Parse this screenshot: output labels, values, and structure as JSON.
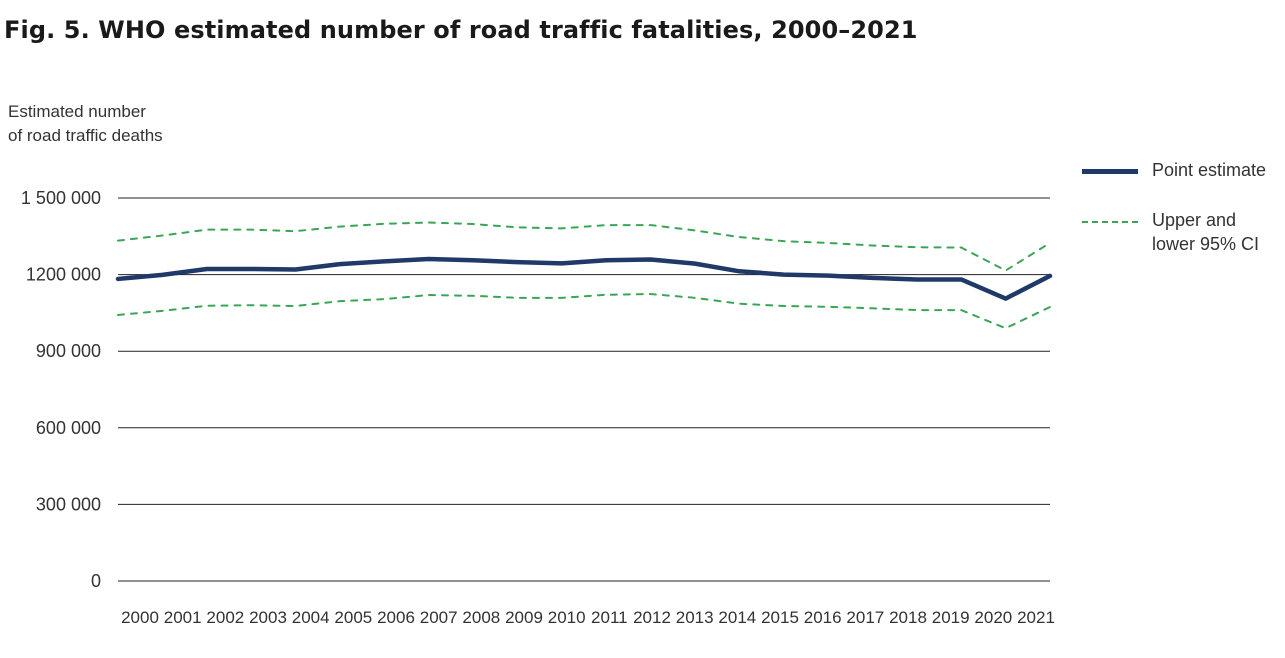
{
  "chart_data": {
    "type": "line",
    "title": "Fig. 5. WHO estimated number of road traffic fatalities, 2000–2021",
    "ylabel_line1": "Estimated number",
    "ylabel_line2": "of road traffic deaths",
    "xlabel": "",
    "ylim": [
      0,
      1500000
    ],
    "yticks": [
      0,
      300000,
      600000,
      900000,
      1200000,
      1500000
    ],
    "ytick_labels": [
      "0",
      "300 000",
      "600 000",
      "900 000",
      "1200 000",
      "1 500 000"
    ],
    "grid": true,
    "legend_position": "right",
    "categories": [
      "2000",
      "2001",
      "2002",
      "2003",
      "2004",
      "2005",
      "2006",
      "2007",
      "2008",
      "2009",
      "2010",
      "2011",
      "2012",
      "2013",
      "2014",
      "2015",
      "2016",
      "2017",
      "2018",
      "2019",
      "2020",
      "2021"
    ],
    "series": [
      {
        "name": "Point estimate",
        "style": "solid",
        "color": "#1f3a68",
        "values": [
          1183000,
          1199000,
          1222000,
          1222000,
          1220000,
          1241000,
          1252000,
          1261000,
          1256000,
          1249000,
          1244000,
          1256000,
          1259000,
          1243000,
          1213000,
          1200000,
          1196000,
          1187000,
          1181000,
          1181000,
          1106000,
          1195000
        ]
      },
      {
        "name": "Upper 95% CI",
        "style": "dashed",
        "color": "#3aa655",
        "values": [
          1333000,
          1353000,
          1376000,
          1376000,
          1370000,
          1388000,
          1399000,
          1404000,
          1398000,
          1385000,
          1381000,
          1394000,
          1394000,
          1373000,
          1347000,
          1331000,
          1324000,
          1314000,
          1307000,
          1306000,
          1216000,
          1324000
        ]
      },
      {
        "name": "Lower 95% CI",
        "style": "dashed",
        "color": "#3aa655",
        "values": [
          1042000,
          1058000,
          1078000,
          1080000,
          1077000,
          1096000,
          1104000,
          1120000,
          1117000,
          1109000,
          1109000,
          1121000,
          1124000,
          1109000,
          1086000,
          1077000,
          1074000,
          1068000,
          1061000,
          1061000,
          990000,
          1073000
        ]
      }
    ],
    "legend": [
      {
        "label_line1": "Point estimate",
        "label_line2": "",
        "style": "solid",
        "color": "#1f3a68"
      },
      {
        "label_line1": "Upper and",
        "label_line2": "lower 95% CI",
        "style": "dashed",
        "color": "#3aa655"
      }
    ]
  }
}
